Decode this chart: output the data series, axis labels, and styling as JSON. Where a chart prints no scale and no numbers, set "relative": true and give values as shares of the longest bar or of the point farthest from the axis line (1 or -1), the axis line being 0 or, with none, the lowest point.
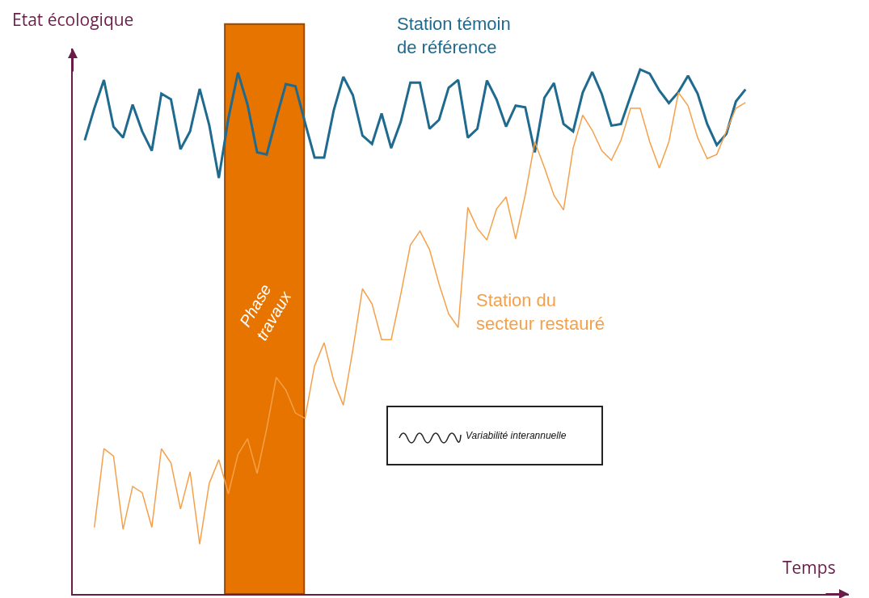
{
  "chart_data": {
    "type": "line",
    "relative": true,
    "xlabel": "Temps",
    "ylabel": "Etat écologique",
    "categories": [
      null,
      null,
      null,
      null,
      null,
      null,
      null,
      null,
      null,
      null,
      null,
      null,
      null,
      null,
      null,
      null,
      null,
      null,
      null,
      null,
      null,
      null,
      null,
      null,
      null,
      null,
      null,
      null,
      null,
      null,
      null,
      null,
      null,
      null,
      null,
      null,
      null,
      null,
      null,
      null,
      null,
      null,
      null,
      null,
      null,
      null,
      null,
      null,
      null,
      null,
      null,
      null,
      null,
      null,
      null,
      null,
      null,
      null,
      null,
      null,
      null,
      null,
      null,
      null,
      null,
      null,
      null,
      null,
      null,
      null
    ],
    "series": [
      {
        "name": "Station témoin de référence",
        "color": "#1f6a8f",
        "values": [
          0.865,
          0.926,
          0.98,
          0.891,
          0.87,
          0.933,
          0.882,
          0.845,
          0.954,
          0.943,
          0.848,
          0.882,
          0.963,
          0.894,
          0.793,
          0.907,
          0.994,
          0.933,
          0.842,
          0.838,
          0.907,
          0.972,
          0.968,
          0.899,
          0.832,
          0.832,
          0.922,
          0.986,
          0.951,
          0.874,
          0.858,
          0.916,
          0.85,
          0.9,
          0.975,
          0.975,
          0.887,
          0.904,
          0.965,
          0.98,
          0.87,
          0.887,
          0.979,
          0.943,
          0.891,
          0.931,
          0.928,
          0.842,
          0.946,
          0.974,
          0.896,
          0.882,
          0.956,
          0.995,
          0.953,
          0.893,
          0.896,
          0.949,
          1.0,
          0.992,
          0.96,
          0.936,
          0.957,
          0.988,
          0.954,
          0.896,
          0.856,
          0.877,
          0.939,
          0.962
        ]
      },
      {
        "name": "Station du secteur restauré",
        "color": "#f5a04a",
        "values": [
          null,
          0.127,
          0.277,
          0.263,
          0.123,
          0.205,
          0.193,
          0.127,
          0.277,
          0.25,
          0.162,
          0.233,
          0.095,
          0.211,
          0.256,
          0.191,
          0.266,
          0.296,
          0.23,
          0.315,
          0.413,
          0.389,
          0.345,
          0.335,
          0.435,
          0.479,
          0.406,
          0.36,
          0.466,
          0.582,
          0.553,
          0.485,
          0.485,
          0.571,
          0.665,
          0.692,
          0.657,
          0.591,
          0.534,
          0.508,
          0.737,
          0.697,
          0.675,
          0.734,
          0.757,
          0.677,
          0.761,
          0.862,
          0.813,
          0.76,
          0.732,
          0.85,
          0.913,
          0.884,
          0.845,
          0.827,
          0.865,
          0.926,
          0.926,
          0.862,
          0.812,
          0.862,
          0.956,
          0.931,
          0.87,
          0.83,
          0.838,
          0.882,
          0.926,
          0.937
        ]
      }
    ],
    "annotations": [
      "Variabilité interannuelle",
      "Phase travaux"
    ]
  }
}
